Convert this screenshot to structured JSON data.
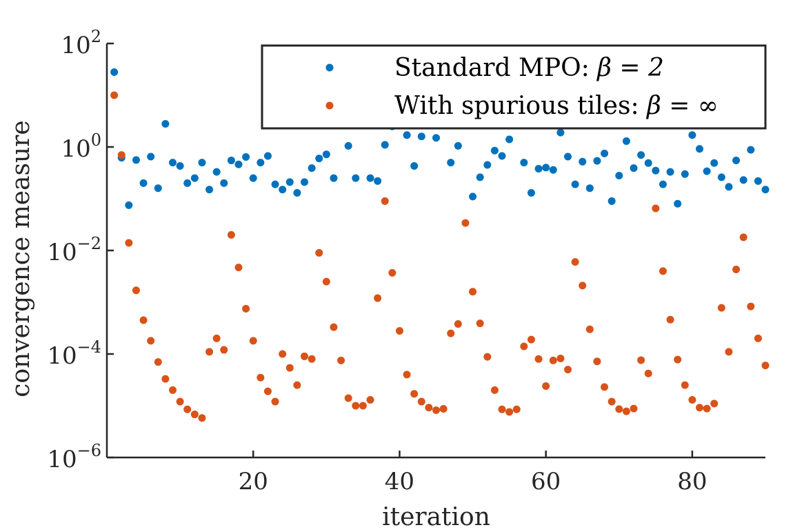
{
  "chart_data": {
    "type": "scatter",
    "title": "",
    "xlabel": "iteration",
    "ylabel": "convergence measure",
    "xlim": [
      0,
      90
    ],
    "ylim": [
      1e-06,
      100
    ],
    "yscale": "log",
    "xticks": [
      20,
      40,
      60,
      80
    ],
    "xtick_labels": [
      "20",
      "40",
      "60",
      "80"
    ],
    "yticks": [
      1e-06,
      0.0001,
      0.01,
      1,
      100
    ],
    "ytick_labels": [
      {
        "base": "10",
        "exp": "−6"
      },
      {
        "base": "10",
        "exp": "−4"
      },
      {
        "base": "10",
        "exp": "−2"
      },
      {
        "base": "10",
        "exp": "0"
      },
      {
        "base": "10",
        "exp": "2"
      }
    ],
    "grid": false,
    "legend_position": "top-right",
    "colors": {
      "series1": "#0072BD",
      "series2": "#D95319",
      "axis": "#262626"
    },
    "series": [
      {
        "name": "Standard MPO",
        "legend_text": "Standard MPO: ",
        "legend_math": "β = 2",
        "color": "#0072BD",
        "x": [
          1,
          2,
          3,
          4,
          5,
          6,
          7,
          8,
          9,
          10,
          11,
          12,
          13,
          14,
          15,
          16,
          17,
          18,
          19,
          20,
          21,
          22,
          23,
          24,
          25,
          26,
          27,
          28,
          29,
          30,
          31,
          33,
          34,
          36,
          37,
          38,
          39,
          41,
          42,
          43,
          45,
          47,
          48,
          50,
          51,
          52,
          53,
          54,
          55,
          57,
          58,
          59,
          60,
          61,
          62,
          63,
          64,
          65,
          66,
          67,
          68,
          69,
          70,
          71,
          72,
          73,
          74,
          75,
          76,
          77,
          78,
          79,
          80,
          81,
          82,
          83,
          84,
          85,
          86,
          87,
          88,
          89,
          90
        ],
        "y": [
          28,
          0.62,
          0.075,
          0.56,
          0.2,
          0.65,
          0.16,
          2.8,
          0.5,
          0.43,
          0.2,
          0.25,
          0.5,
          0.15,
          0.33,
          0.2,
          0.55,
          0.46,
          0.64,
          0.25,
          0.5,
          0.67,
          0.19,
          0.15,
          0.21,
          0.13,
          0.21,
          0.39,
          0.6,
          0.72,
          0.25,
          1.05,
          0.25,
          0.25,
          0.22,
          1.1,
          2.5,
          1.7,
          0.43,
          1.6,
          1.5,
          0.5,
          1.05,
          0.11,
          0.26,
          0.45,
          0.85,
          0.67,
          1.4,
          0.5,
          0.13,
          0.38,
          0.4,
          0.36,
          1.9,
          0.65,
          0.19,
          0.52,
          0.16,
          0.54,
          0.75,
          0.09,
          0.28,
          1.3,
          0.39,
          0.7,
          0.49,
          0.35,
          0.19,
          0.33,
          0.08,
          0.3,
          1.7,
          0.92,
          0.34,
          0.49,
          0.26,
          0.17,
          0.55,
          0.23,
          0.88,
          0.22,
          0.15
        ]
      },
      {
        "name": "With spurious tiles",
        "legend_text": "With spurious tiles: ",
        "legend_math": "β = ∞",
        "color": "#D95319",
        "x": [
          1,
          2,
          3,
          4,
          5,
          6,
          7,
          8,
          9,
          10,
          11,
          12,
          13,
          14,
          15,
          16,
          17,
          18,
          19,
          20,
          21,
          22,
          23,
          24,
          25,
          26,
          27,
          28,
          29,
          30,
          31,
          32,
          33,
          34,
          35,
          36,
          37,
          38,
          39,
          40,
          41,
          42,
          43,
          44,
          45,
          46,
          47,
          48,
          49,
          50,
          51,
          52,
          53,
          54,
          55,
          56,
          57,
          58,
          59,
          60,
          61,
          62,
          63,
          64,
          65,
          66,
          67,
          68,
          69,
          70,
          71,
          72,
          73,
          74,
          75,
          76,
          77,
          78,
          79,
          80,
          81,
          82,
          83,
          84,
          85,
          86,
          87,
          88,
          89,
          90
        ],
        "y": [
          10,
          0.7,
          0.014,
          0.0017,
          0.00045,
          0.00018,
          7e-05,
          3.3e-05,
          2e-05,
          1.2e-05,
          8.5e-06,
          6.8e-06,
          5.8e-06,
          0.00011,
          0.0002,
          0.00012,
          0.02,
          0.0047,
          0.00075,
          0.00018,
          3.5e-05,
          1.9e-05,
          1.2e-05,
          0.0001,
          5.4e-05,
          2.5e-05,
          9e-05,
          8e-05,
          0.009,
          0.0025,
          0.00033,
          7.5e-05,
          1.4e-05,
          1e-05,
          1e-05,
          1.3e-05,
          0.0012,
          0.09,
          0.0037,
          0.00028,
          4e-05,
          1.7e-05,
          1.2e-05,
          9.2e-06,
          8.2e-06,
          8.7e-06,
          0.00025,
          0.00038,
          0.034,
          0.0016,
          0.00039,
          8.8e-05,
          2e-05,
          8.5e-06,
          7.6e-06,
          8.5e-06,
          0.00014,
          0.00019,
          8e-05,
          2.4e-05,
          7.5e-05,
          8.2e-05,
          5e-05,
          0.006,
          0.0021,
          0.0003,
          7.2e-05,
          2.3e-05,
          1.2e-05,
          8.6e-06,
          7.8e-06,
          8.8e-06,
          7.6e-05,
          4.2e-05,
          0.065,
          0.004,
          0.00046,
          7.8e-05,
          2.5e-05,
          1.3e-05,
          9.2e-06,
          8.8e-06,
          1.1e-05,
          0.00078,
          0.00011,
          0.0043,
          0.018,
          0.00083,
          0.0002,
          6e-05
        ]
      }
    ]
  }
}
